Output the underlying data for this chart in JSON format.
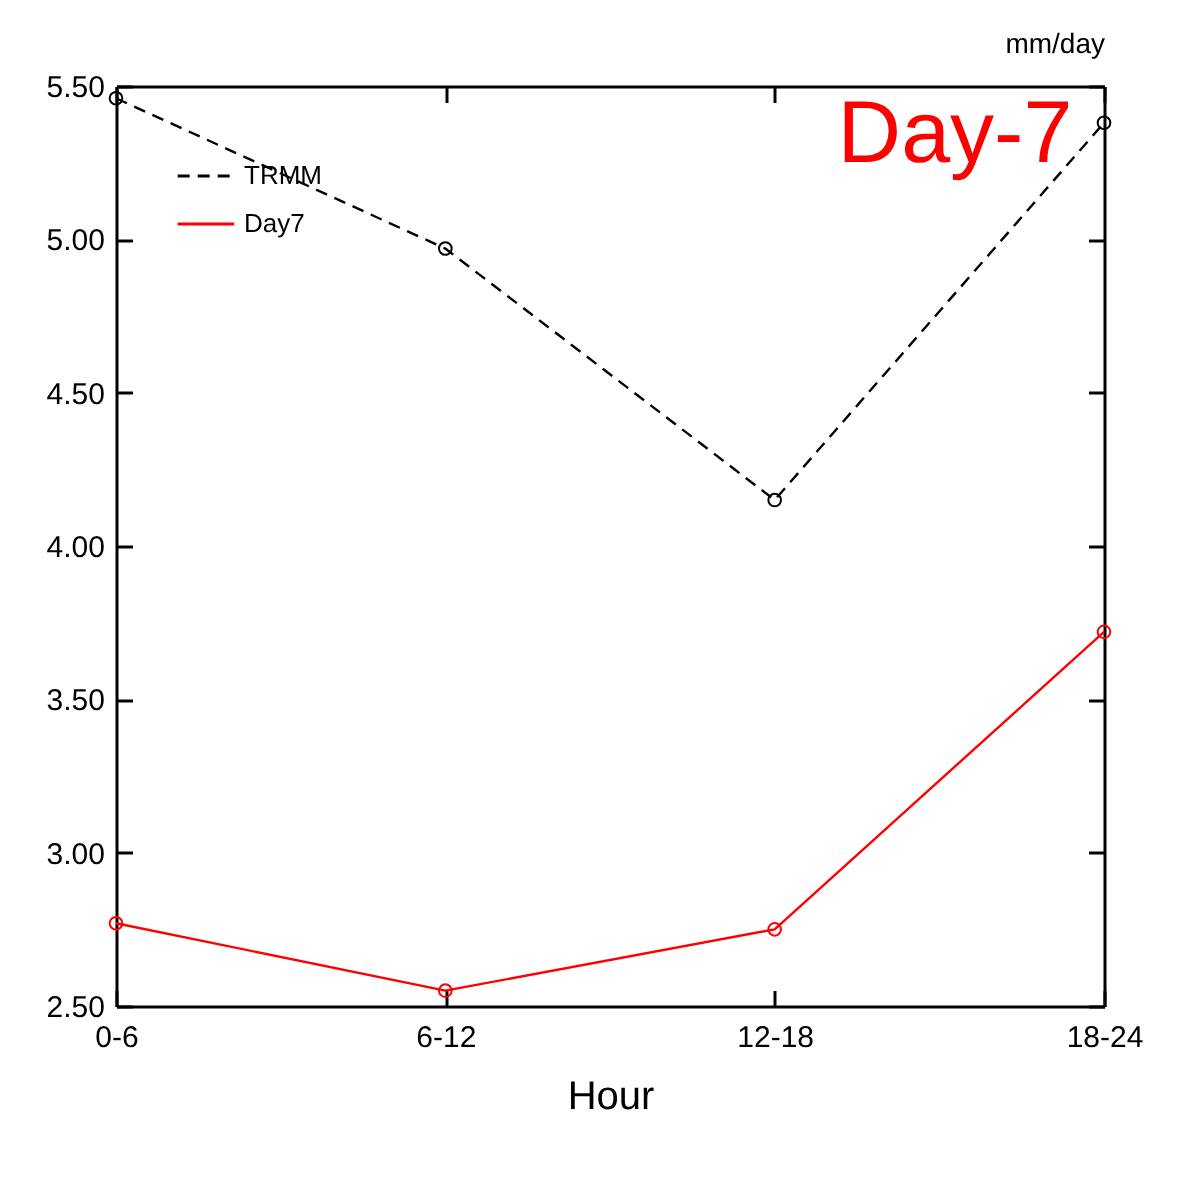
{
  "chart_data": {
    "type": "line",
    "title": "Day-7",
    "xlabel": "Hour",
    "ylabel": "mm/day",
    "categories": [
      "0-6",
      "6-12",
      "12-18",
      "18-24"
    ],
    "series": [
      {
        "name": "TRMM",
        "color": "#000000",
        "line_style": "dashed",
        "values": [
          5.46,
          4.97,
          4.15,
          5.38
        ]
      },
      {
        "name": "Day7",
        "color": "#ff0000",
        "line_style": "solid",
        "values": [
          2.77,
          2.55,
          2.75,
          3.72
        ]
      }
    ],
    "ylim": [
      2.5,
      5.5
    ],
    "yticks": [
      {
        "value": 2.5,
        "label": "2.50"
      },
      {
        "value": 3,
        "label": "3.00"
      },
      {
        "value": 3.5,
        "label": "3.50"
      },
      {
        "value": 4,
        "label": "4.00"
      },
      {
        "value": 4.5,
        "label": "4.50"
      },
      {
        "value": 5,
        "label": "5.00"
      },
      {
        "value": 5.5,
        "label": "5.50"
      }
    ],
    "marker": "circle",
    "legend": "top left",
    "grid": false
  }
}
